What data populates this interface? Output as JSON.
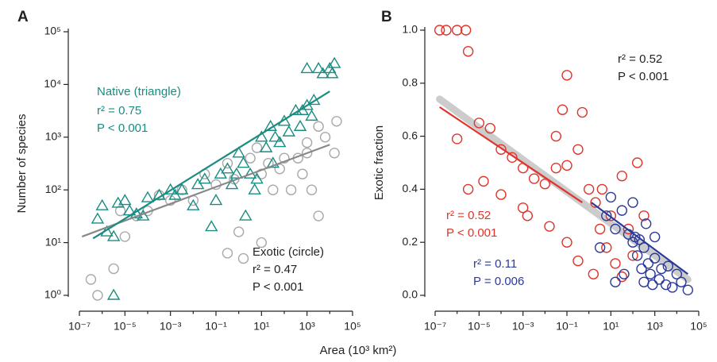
{
  "x_axis_label": "Area (10³ km²)",
  "chart_data": [
    {
      "type": "scatter",
      "panel": "A",
      "y_axis_label": "Number of species",
      "xlog": true,
      "ylog": true,
      "xlim": [
        1e-07,
        100000.0
      ],
      "ylim": [
        1,
        100000
      ],
      "xticks": [
        {
          "value": 1e-07,
          "label": "10⁻⁷"
        },
        {
          "value": 1e-05,
          "label": "10⁻⁵"
        },
        {
          "value": 0.001,
          "label": "10⁻³"
        },
        {
          "value": 0.1,
          "label": "10⁻¹"
        },
        {
          "value": 10,
          "label": "10¹"
        },
        {
          "value": 1000,
          "label": "10³"
        },
        {
          "value": 100000,
          "label": "10⁵"
        }
      ],
      "xminorticks": [
        1e-06,
        0.0001,
        0.01,
        1,
        100,
        10000
      ],
      "yticks": [
        {
          "value": 1,
          "label": "10⁰"
        },
        {
          "value": 10,
          "label": "10¹"
        },
        {
          "value": 100,
          "label": "10²"
        },
        {
          "value": 1000,
          "label": "10³"
        },
        {
          "value": 10000,
          "label": "10⁴"
        },
        {
          "value": 100000,
          "label": "10⁵"
        }
      ],
      "series": [
        {
          "name": "Exotic (circle)",
          "marker": "circle",
          "color": "#a8a8a8",
          "stats": [
            "r² = 0.47",
            "P < 0.001"
          ],
          "x": [
            3.2e-07,
            6.3e-07,
            3.2e-06,
            1e-05,
            6.3e-06,
            3.2e-05,
            0.0001,
            0.00032,
            0.001,
            0.0032,
            0.01,
            0.032,
            0.1,
            0.32,
            0.63,
            1,
            1.6,
            0.32,
            3.2,
            6.3,
            10,
            10,
            20,
            32,
            63,
            100,
            200,
            400,
            630,
            1000,
            1600,
            3200,
            3200,
            6300,
            16000,
            20000,
            1000
          ],
          "y": [
            2,
            1,
            3.2,
            13,
            40,
            32,
            40,
            79,
            63,
            100,
            63,
            200,
            126,
            320,
            160,
            16,
            5,
            6.3,
            400,
            630,
            200,
            10,
            320,
            100,
            250,
            400,
            100,
            400,
            200,
            790,
            100,
            1600,
            32,
            1000,
            500,
            2000,
            500
          ],
          "fit_x": [
            1.3e-07,
            10000
          ],
          "fit_y": [
            13,
            720
          ]
        },
        {
          "name": "Native (triangle)",
          "marker": "triangle",
          "color": "#1a8c82",
          "stats": [
            "r² = 0.75",
            "P < 0.001"
          ],
          "x": [
            1e-06,
            6.3e-07,
            1.6e-06,
            3.2e-06,
            1e-05,
            5e-06,
            1.6e-05,
            3.2e-05,
            6.3e-05,
            0.0001,
            0.00032,
            0.001,
            0.0032,
            0.01,
            0.016,
            0.032,
            0.063,
            0.1,
            0.16,
            0.32,
            0.5,
            1,
            1.6,
            3.2,
            5,
            2,
            10,
            16,
            25,
            40,
            63,
            100,
            160,
            320,
            500,
            1000,
            1600,
            2000,
            3200,
            5000,
            10000,
            16000,
            12600,
            3.2e-06,
            1000,
            630,
            32,
            6.3,
            0.8,
            0.0016
          ],
          "y": [
            50,
            28,
            16,
            13,
            63,
            56,
            40,
            35,
            32,
            71,
            79,
            100,
            100,
            50,
            126,
            160,
            20,
            63,
            200,
            250,
            126,
            500,
            320,
            200,
            100,
            32,
            1000,
            630,
            1600,
            1000,
            790,
            2000,
            1260,
            3200,
            1600,
            4000,
            2500,
            5000,
            20000,
            16000,
            20000,
            25000,
            16000,
            1,
            20000,
            3200,
            320,
            160,
            200,
            79
          ],
          "fit_x": [
            4e-07,
            10000
          ],
          "fit_y": [
            12,
            7400
          ]
        }
      ]
    },
    {
      "type": "scatter",
      "panel": "B",
      "y_axis_label": "Exotic fraction",
      "xlog": true,
      "ylog": false,
      "xlim": [
        1e-07,
        100000.0
      ],
      "ylim": [
        0,
        1
      ],
      "xticks": [
        {
          "value": 1e-07,
          "label": "10⁻⁷"
        },
        {
          "value": 1e-05,
          "label": "10⁻⁵"
        },
        {
          "value": 0.001,
          "label": "10⁻³"
        },
        {
          "value": 0.1,
          "label": "10⁻¹"
        },
        {
          "value": 10,
          "label": "10¹"
        },
        {
          "value": 1000,
          "label": "10³"
        },
        {
          "value": 100000,
          "label": "10⁵"
        }
      ],
      "xminorticks": [
        1e-06,
        0.0001,
        0.01,
        1,
        100,
        10000
      ],
      "yticks": [
        {
          "value": 0,
          "label": "0.0"
        },
        {
          "value": 0.2,
          "label": "0.2"
        },
        {
          "value": 0.4,
          "label": "0.4"
        },
        {
          "value": 0.6,
          "label": "0.6"
        },
        {
          "value": 0.8,
          "label": "0.8"
        },
        {
          "value": 1,
          "label": "1.0"
        }
      ],
      "overall_fit": {
        "color": "#cccccc",
        "stats": [
          "r² = 0.52",
          "P < 0.001"
        ],
        "x": [
          1.6e-07,
          32000
        ],
        "y": [
          0.74,
          0.06
        ]
      },
      "series": [
        {
          "marker": "circle",
          "color": "#e0342a",
          "stats": [
            "r² = 0.52",
            "P < 0.001"
          ],
          "x": [
            1.6e-07,
            3.2e-07,
            1e-06,
            2.5e-06,
            3.2e-06,
            1e-06,
            1e-05,
            1.6e-05,
            3.2e-06,
            3.2e-05,
            0.0001,
            0.0001,
            0.00032,
            0.001,
            0.0032,
            0.001,
            0.0016,
            0.01,
            0.032,
            0.063,
            0.1,
            0.032,
            0.1,
            0.32,
            0.5,
            1,
            2,
            3.2,
            6.3,
            0.1,
            0.32,
            1.6,
            10,
            16,
            32,
            63,
            100,
            160,
            320,
            0.016,
            32,
            4
          ],
          "y": [
            1,
            1,
            1,
            1,
            0.92,
            0.59,
            0.65,
            0.43,
            0.4,
            0.63,
            0.55,
            0.38,
            0.52,
            0.48,
            0.44,
            0.33,
            0.3,
            0.42,
            0.6,
            0.7,
            0.83,
            0.48,
            0.49,
            0.55,
            0.69,
            0.4,
            0.35,
            0.25,
            0.18,
            0.2,
            0.13,
            0.08,
            0.3,
            0.12,
            0.07,
            0.25,
            0.15,
            0.5,
            0.3,
            0.26,
            0.45,
            0.4
          ],
          "fit_x": [
            1.6e-07,
            0.5
          ],
          "fit_y": [
            0.71,
            0.35
          ]
        },
        {
          "marker": "circle",
          "color": "#2b3a9a",
          "stats": [
            "r² = 0.11",
            "P = 0.006"
          ],
          "x": [
            3.2,
            6.3,
            10,
            16,
            32,
            63,
            100,
            100,
            126,
            160,
            200,
            250,
            320,
            320,
            400,
            500,
            630,
            1000,
            1000,
            1600,
            2000,
            3200,
            4000,
            6300,
            10000,
            16000,
            32000,
            16,
            40,
            790
          ],
          "y": [
            0.18,
            0.3,
            0.37,
            0.25,
            0.32,
            0.23,
            0.35,
            0.2,
            0.22,
            0.15,
            0.21,
            0.1,
            0.18,
            0.05,
            0.27,
            0.12,
            0.08,
            0.14,
            0.22,
            0.06,
            0.1,
            0.04,
            0.11,
            0.03,
            0.08,
            0.05,
            0.02,
            0.05,
            0.08,
            0.04
          ],
          "fit_x": [
            1.3,
            32000
          ],
          "fit_y": [
            0.35,
            0.08
          ]
        }
      ]
    }
  ]
}
